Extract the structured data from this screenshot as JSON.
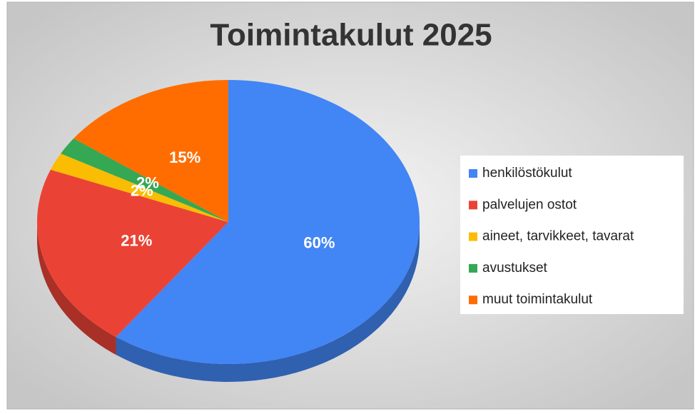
{
  "chart_data": {
    "type": "pie",
    "title": "Toimintakulut 2025",
    "categories": [
      "henkilöstökulut",
      "palvelujen ostot",
      "aineet, tarvikkeet, tavarat",
      "avustukset",
      "muut toimintakulut"
    ],
    "values": [
      60,
      21,
      2,
      2,
      15
    ],
    "value_labels": [
      "60%",
      "21%",
      "2%",
      "2%",
      "15%"
    ],
    "colors": [
      "#4285f4",
      "#ea4335",
      "#fbbc04",
      "#34a853",
      "#ff6d01"
    ],
    "legend": "right"
  }
}
